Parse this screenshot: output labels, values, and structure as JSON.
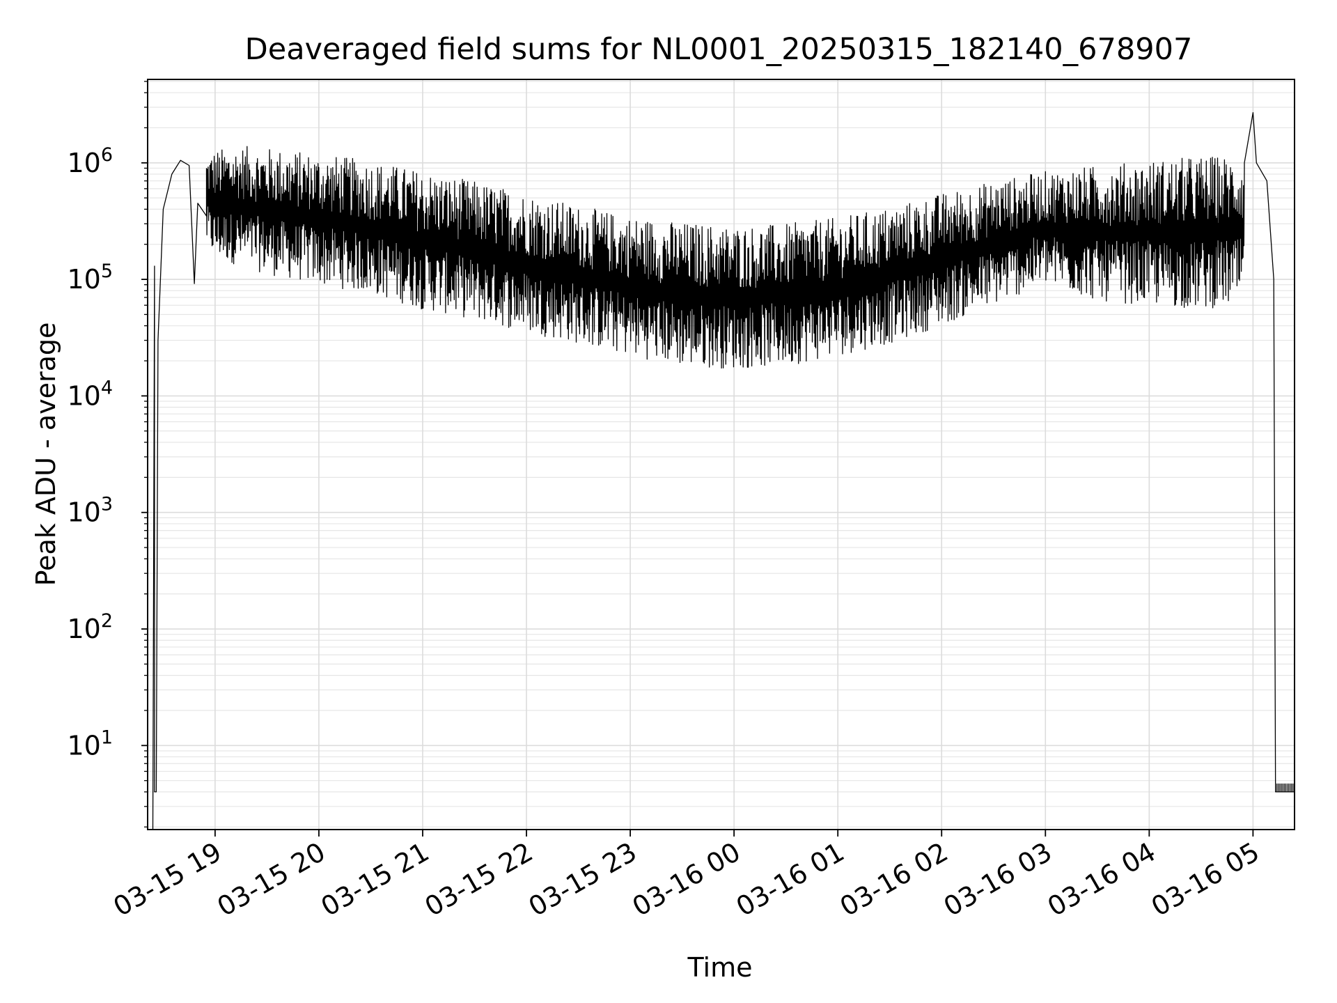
{
  "chart_data": {
    "type": "line",
    "title": "Deaveraged field sums for NL0001_20250315_182140_678907",
    "xlabel": "Time",
    "ylabel": "Peak ADU - average",
    "yscale": "log",
    "xlim": [
      "2025-03-15T18:21",
      "2025-03-16T05:24"
    ],
    "ylim": [
      1.9,
      5200000
    ],
    "grid": "both",
    "x_ticks": [
      {
        "t": "2025-03-15T19:00",
        "label": "03-15 19"
      },
      {
        "t": "2025-03-15T20:00",
        "label": "03-15 20"
      },
      {
        "t": "2025-03-15T21:00",
        "label": "03-15 21"
      },
      {
        "t": "2025-03-15T22:00",
        "label": "03-15 22"
      },
      {
        "t": "2025-03-15T23:00",
        "label": "03-15 23"
      },
      {
        "t": "2025-03-16T00:00",
        "label": "03-16 00"
      },
      {
        "t": "2025-03-16T01:00",
        "label": "03-16 01"
      },
      {
        "t": "2025-03-16T02:00",
        "label": "03-16 02"
      },
      {
        "t": "2025-03-16T03:00",
        "label": "03-16 03"
      },
      {
        "t": "2025-03-16T04:00",
        "label": "03-16 04"
      },
      {
        "t": "2025-03-16T05:00",
        "label": "03-16 05"
      }
    ],
    "y_ticks": [
      {
        "value": 10,
        "base": "10",
        "exp": "1"
      },
      {
        "value": 100,
        "base": "10",
        "exp": "2"
      },
      {
        "value": 1000,
        "base": "10",
        "exp": "3"
      },
      {
        "value": 10000,
        "base": "10",
        "exp": "4"
      },
      {
        "value": 100000,
        "base": "10",
        "exp": "5"
      },
      {
        "value": 1000000,
        "base": "10",
        "exp": "6"
      }
    ],
    "series": [
      {
        "color": "#000000",
        "envelope": {
          "t": [
            "2025-03-15T18:30",
            "2025-03-15T18:45",
            "2025-03-15T19:00",
            "2025-03-15T19:15",
            "2025-03-15T19:30",
            "2025-03-15T20:00",
            "2025-03-15T20:30",
            "2025-03-15T21:00",
            "2025-03-15T21:30",
            "2025-03-15T22:00",
            "2025-03-15T22:30",
            "2025-03-15T23:00",
            "2025-03-15T23:30",
            "2025-03-16T00:00",
            "2025-03-16T00:30",
            "2025-03-16T01:00",
            "2025-03-16T01:30",
            "2025-03-16T02:00",
            "2025-03-16T02:30",
            "2025-03-16T03:00",
            "2025-03-16T03:30",
            "2025-03-16T04:00",
            "2025-03-16T04:30",
            "2025-03-16T04:50"
          ],
          "upper": [
            1000000,
            1000000,
            1300000,
            1400000,
            1350000,
            1200000,
            1050000,
            850000,
            700000,
            550000,
            430000,
            350000,
            310000,
            290000,
            300000,
            340000,
            420000,
            550000,
            700000,
            850000,
            950000,
            1050000,
            1150000,
            1150000
          ],
          "lower": [
            300000,
            300000,
            150000,
            130000,
            110000,
            90000,
            75000,
            55000,
            45000,
            35000,
            28000,
            22000,
            18000,
            17000,
            18000,
            22000,
            28000,
            40000,
            60000,
            90000,
            65000,
            60000,
            55000,
            60000
          ]
        },
        "points": [
          [
            "2025-03-15T18:24",
            1.9
          ],
          [
            "2025-03-15T18:25",
            130000
          ],
          [
            "2025-03-15T18:25",
            4
          ],
          [
            "2025-03-15T18:26",
            4
          ],
          [
            "2025-03-15T18:27",
            30000
          ],
          [
            "2025-03-15T18:30",
            400000
          ],
          [
            "2025-03-15T18:35",
            800000
          ],
          [
            "2025-03-15T18:40",
            1050000
          ],
          [
            "2025-03-15T18:45",
            950000
          ],
          [
            "2025-03-15T18:48",
            92000
          ],
          [
            "2025-03-15T18:50",
            450000
          ],
          [
            "2025-03-15T18:55",
            350000
          ],
          [
            "2025-03-15T19:20",
            60000
          ],
          [
            "2025-03-15T22:30",
            15000
          ],
          [
            "2025-03-15T23:45",
            12500
          ],
          [
            "2025-03-16T00:15",
            11000
          ],
          [
            "2025-03-16T00:50",
            13000
          ],
          [
            "2025-03-16T04:55",
            1000000
          ],
          [
            "2025-03-16T05:00",
            2700000
          ],
          [
            "2025-03-16T05:02",
            1000000
          ],
          [
            "2025-03-16T05:08",
            700000
          ],
          [
            "2025-03-16T05:12",
            100000
          ],
          [
            "2025-03-16T05:13",
            4
          ],
          [
            "2025-03-16T05:24",
            4
          ]
        ]
      }
    ]
  }
}
